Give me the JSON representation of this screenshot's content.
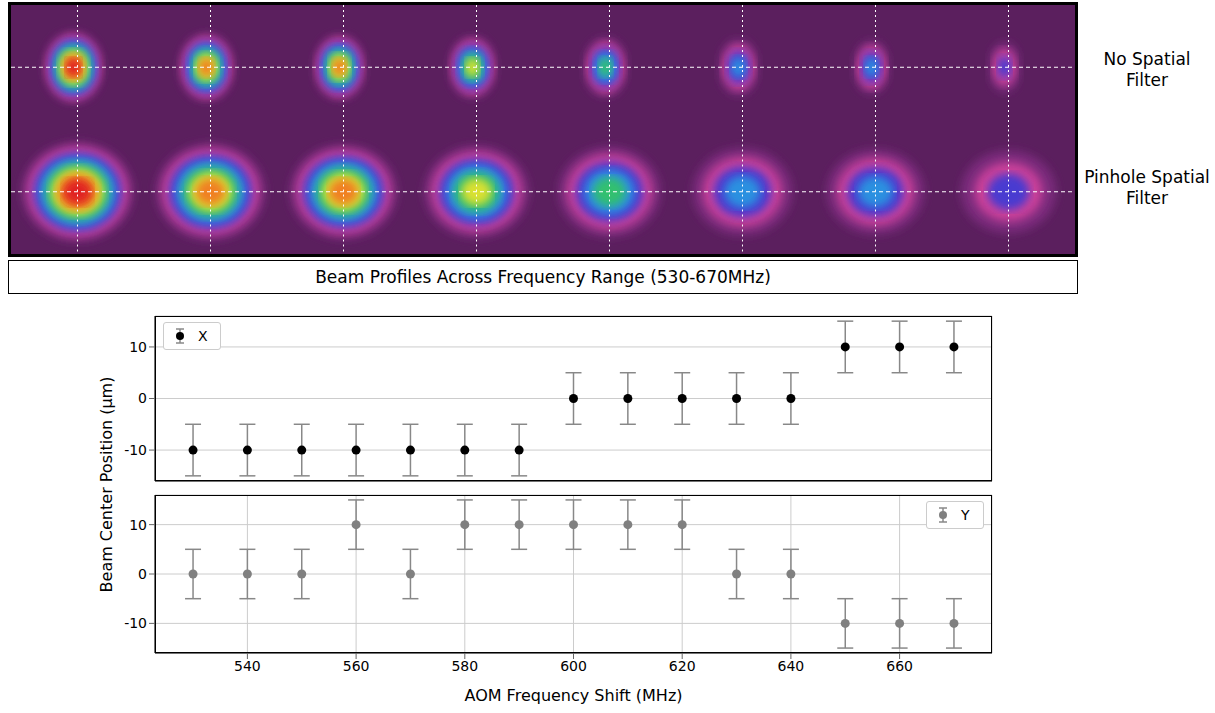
{
  "beam_profiles": {
    "row_labels": [
      "No Spatial Filter",
      "Pinhole Spatial Filter"
    ],
    "caption": "Beam Profiles Across Frequency Range (530-670MHz)"
  },
  "ylabel": "Beam Center Position (μm)",
  "chart_data": [
    {
      "type": "scatter",
      "x": [
        530,
        540,
        550,
        560,
        570,
        580,
        590,
        600,
        610,
        620,
        630,
        640,
        650,
        660,
        670
      ],
      "series": [
        {
          "name": "X",
          "color": "#000000",
          "marker": "circle",
          "values": [
            -10,
            -10,
            -10,
            -10,
            -10,
            -10,
            -10,
            0,
            0,
            0,
            0,
            0,
            10,
            10,
            10
          ],
          "error": [
            5,
            5,
            5,
            5,
            5,
            5,
            5,
            5,
            5,
            5,
            5,
            5,
            5,
            5,
            5
          ]
        }
      ],
      "xlim": [
        523,
        677
      ],
      "xticks": [
        540,
        560,
        580,
        600,
        620,
        640,
        660
      ],
      "ylim": [
        -16,
        16
      ],
      "yticks": [
        -10,
        0,
        10
      ],
      "grid": true,
      "legend": "upper left",
      "tick_labels": "y"
    },
    {
      "type": "scatter",
      "x": [
        530,
        540,
        550,
        560,
        570,
        580,
        590,
        600,
        610,
        620,
        630,
        640,
        650,
        660,
        670
      ],
      "series": [
        {
          "name": "Y",
          "color": "#808080",
          "marker": "circle",
          "values": [
            0,
            0,
            0,
            10,
            0,
            10,
            10,
            10,
            10,
            10,
            0,
            0,
            -10,
            -10,
            -10
          ],
          "error": [
            5,
            5,
            5,
            5,
            5,
            5,
            5,
            5,
            5,
            5,
            5,
            5,
            5,
            5,
            5
          ]
        }
      ],
      "xlabel": "AOM Frequency Shift (MHz)",
      "xlim": [
        523,
        677
      ],
      "xticks": [
        540,
        560,
        580,
        600,
        620,
        640,
        660
      ],
      "ylim": [
        -16,
        16
      ],
      "yticks": [
        -10,
        0,
        10
      ],
      "grid": true,
      "legend": "upper right"
    }
  ]
}
